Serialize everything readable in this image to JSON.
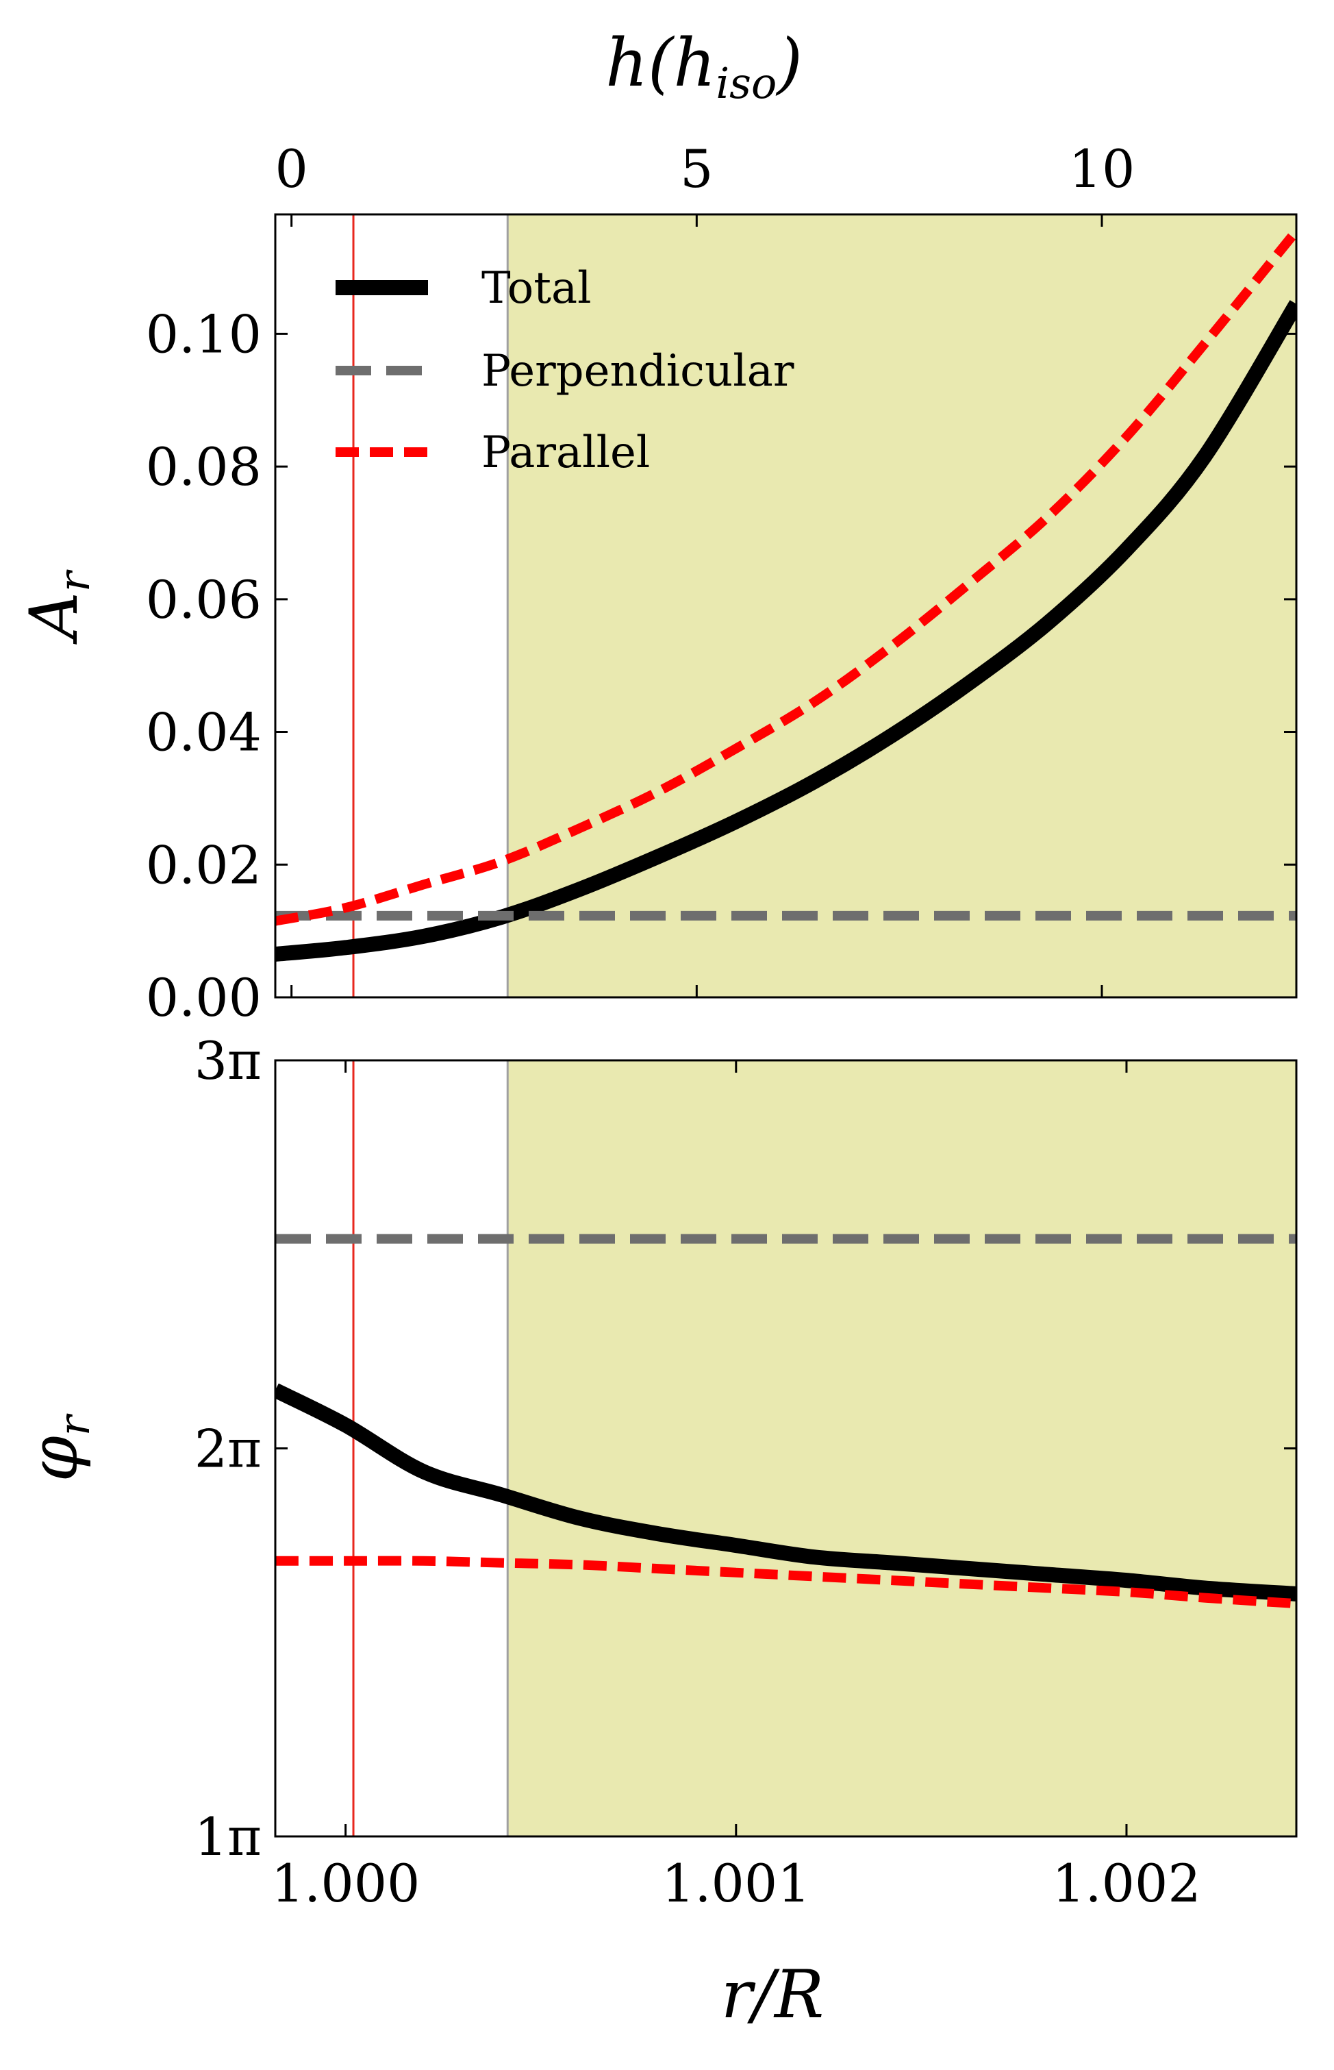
{
  "chart_data": [
    {
      "type": "line",
      "panel": "top",
      "xlabel": "",
      "ylabel": "A_r",
      "top_xlabel": "h(h_iso)",
      "xlim": [
        0.99982,
        1.002435
      ],
      "ylim": [
        0.0,
        0.118
      ],
      "top_xlim": [
        -0.2,
        12.4
      ],
      "yticks": [
        0.0,
        0.02,
        0.04,
        0.06,
        0.08,
        0.1
      ],
      "ytick_labels": [
        "0.00",
        "0.02",
        "0.04",
        "0.06",
        "0.08",
        "0.10"
      ],
      "top_xticks": [
        0,
        5,
        10
      ],
      "top_xtick_labels": [
        "0",
        "5",
        "10"
      ],
      "shaded_region": {
        "x_start": 1.000415,
        "x_end": 1.002435,
        "color": "#e9e9b0"
      },
      "vertical_lines": [
        {
          "x": 1.00002,
          "color": "#e8281e"
        },
        {
          "x": 1.000415,
          "color": "#a0a0a0"
        }
      ],
      "legend": {
        "placement": "upper-left",
        "entries": [
          "Total",
          "Perpendicular",
          "Parallel"
        ]
      },
      "series": [
        {
          "name": "Total",
          "color": "#000000",
          "style": "solid",
          "x": [
            0.99982,
            1.0,
            1.0002,
            1.0004,
            1.0006,
            1.0008,
            1.001,
            1.0012,
            1.0014,
            1.0016,
            1.0018,
            1.002,
            1.0022,
            1.002435
          ],
          "y": [
            0.0065,
            0.0075,
            0.0092,
            0.0121,
            0.0163,
            0.0212,
            0.0265,
            0.0325,
            0.0395,
            0.0475,
            0.0565,
            0.0675,
            0.0815,
            0.1045
          ]
        },
        {
          "name": "Perpendicular",
          "color": "#6e6e6e",
          "style": "dashed",
          "x": [
            0.99982,
            1.002435
          ],
          "y": [
            0.0123,
            0.0123
          ]
        },
        {
          "name": "Parallel",
          "color": "#ff0000",
          "style": "dashed",
          "x": [
            0.99982,
            1.0,
            1.0002,
            1.0004,
            1.0006,
            1.0008,
            1.001,
            1.0012,
            1.0014,
            1.0016,
            1.0018,
            1.002,
            1.0022,
            1.002435
          ],
          "y": [
            0.0115,
            0.0135,
            0.017,
            0.0205,
            0.0255,
            0.031,
            0.0375,
            0.0445,
            0.053,
            0.0625,
            0.0725,
            0.0845,
            0.0985,
            0.1155
          ]
        }
      ]
    },
    {
      "type": "line",
      "panel": "bottom",
      "xlabel": "r/R",
      "ylabel": "φ_r",
      "xlim": [
        0.99982,
        1.002435
      ],
      "ylim": [
        1,
        3
      ],
      "y_unit": "π",
      "xticks": [
        1.0,
        1.001,
        1.002
      ],
      "xtick_labels": [
        "1.000",
        "1.001",
        "1.002"
      ],
      "yticks": [
        1,
        2,
        3
      ],
      "ytick_labels": [
        "1π",
        "2π",
        "3π"
      ],
      "shaded_region": {
        "x_start": 1.000415,
        "x_end": 1.002435,
        "color": "#e9e9b0"
      },
      "vertical_lines": [
        {
          "x": 1.00002,
          "color": "#e8281e"
        },
        {
          "x": 1.000415,
          "color": "#a0a0a0"
        }
      ],
      "series": [
        {
          "name": "Total",
          "color": "#000000",
          "style": "solid",
          "x": [
            0.99982,
            1.0,
            1.0002,
            1.0004,
            1.0006,
            1.0008,
            1.001,
            1.0012,
            1.0014,
            1.0016,
            1.0018,
            1.002,
            1.0022,
            1.002435
          ],
          "y": [
            2.15,
            2.06,
            1.94,
            1.88,
            1.82,
            1.78,
            1.75,
            1.72,
            1.705,
            1.69,
            1.675,
            1.66,
            1.64,
            1.625
          ]
        },
        {
          "name": "Perpendicular",
          "color": "#6e6e6e",
          "style": "dashed",
          "x": [
            0.99982,
            1.002435
          ],
          "y": [
            2.54,
            2.54
          ]
        },
        {
          "name": "Parallel",
          "color": "#ff0000",
          "style": "dashed",
          "x": [
            0.99982,
            1.0,
            1.0002,
            1.0004,
            1.0006,
            1.0008,
            1.001,
            1.0012,
            1.0014,
            1.0016,
            1.0018,
            1.002,
            1.0022,
            1.002435
          ],
          "y": [
            1.71,
            1.71,
            1.71,
            1.705,
            1.7,
            1.69,
            1.68,
            1.67,
            1.66,
            1.65,
            1.64,
            1.63,
            1.615,
            1.6
          ]
        }
      ]
    }
  ]
}
